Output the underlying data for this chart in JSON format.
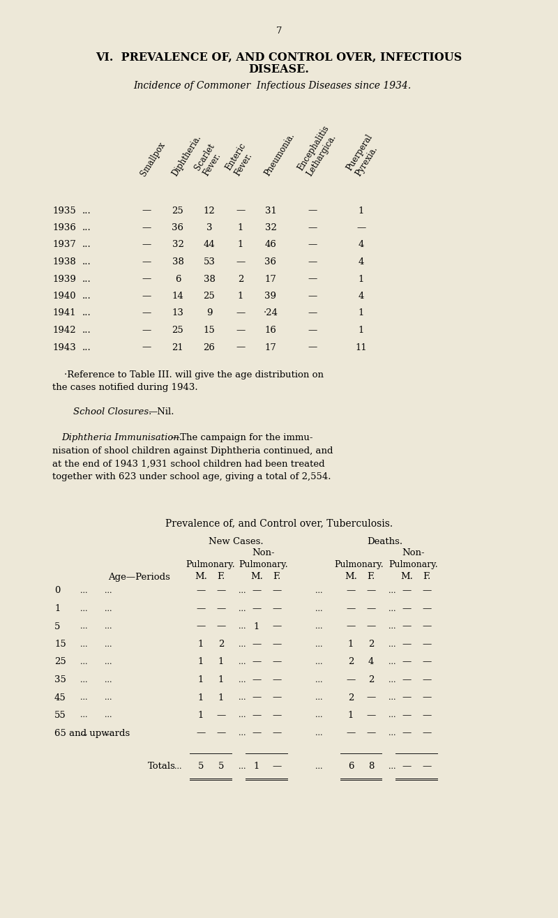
{
  "bg_color": "#ede8d8",
  "page_number": "7",
  "title_line1": "VI.  PREVALENCE OF, AND CONTROL OVER, INFECTIOUS",
  "title_line2": "DISEASE.",
  "subtitle": "Incidence of Commoner  Infectious Diseases since 1934.",
  "col_headers": [
    "Smallpox",
    "Diphtheria.",
    "Scarlet\nFever.",
    "Enteric\nFever.",
    "Pneumonia.",
    "Encephalitis\nLethargica.",
    "Puerperal\nPyrexia."
  ],
  "table1_years": [
    "1935",
    "1936",
    "1937",
    "1938",
    "1939",
    "1940",
    "1941",
    "1942",
    "1943"
  ],
  "table1_data": [
    [
      "—",
      "25",
      "12",
      "—",
      "31",
      "—",
      "1"
    ],
    [
      "—",
      "36",
      "3",
      "1",
      "32",
      "—",
      "—"
    ],
    [
      "—",
      "32",
      "44",
      "1",
      "46",
      "—",
      "4"
    ],
    [
      "—",
      "38",
      "53",
      "—",
      "36",
      "—",
      "4"
    ],
    [
      "—",
      "6",
      "38",
      "2",
      "17",
      "—",
      "1"
    ],
    [
      "—",
      "14",
      "25",
      "1",
      "39",
      "—",
      "4"
    ],
    [
      "—",
      "13",
      "9",
      "—",
      "·24",
      "—",
      "1"
    ],
    [
      "—",
      "25",
      "15",
      "—",
      "16",
      "—",
      "1"
    ],
    [
      "—",
      "21",
      "26",
      "—",
      "17",
      "—",
      "11"
    ]
  ],
  "tb_ages": [
    "0",
    "1",
    "5",
    "15",
    "25",
    "35",
    "45",
    "55",
    "65 and upwards"
  ],
  "tb_data": [
    [
      "—",
      "—",
      "—",
      "—",
      "—",
      "—",
      "—",
      "—"
    ],
    [
      "—",
      "—",
      "—",
      "—",
      "—",
      "—",
      "—",
      "—"
    ],
    [
      "—",
      "—",
      "1",
      "—",
      "—",
      "—",
      "—",
      "—"
    ],
    [
      "1",
      "2",
      "—",
      "—",
      "1",
      "2",
      "—",
      "—"
    ],
    [
      "1",
      "1",
      "—",
      "—",
      "2",
      "4",
      "—",
      "—"
    ],
    [
      "1",
      "1",
      "—",
      "—",
      "—",
      "2",
      "—",
      "—"
    ],
    [
      "1",
      "1",
      "—",
      "—",
      "2",
      "—",
      "—",
      "—"
    ],
    [
      "1",
      "—",
      "—",
      "—",
      "1",
      "—",
      "—",
      "—"
    ],
    [
      "—",
      "—",
      "—",
      "—",
      "—",
      "—",
      "—",
      "—"
    ]
  ],
  "tb_totals": [
    "5",
    "5",
    "1",
    "—",
    "6",
    "8",
    "—",
    "—"
  ]
}
